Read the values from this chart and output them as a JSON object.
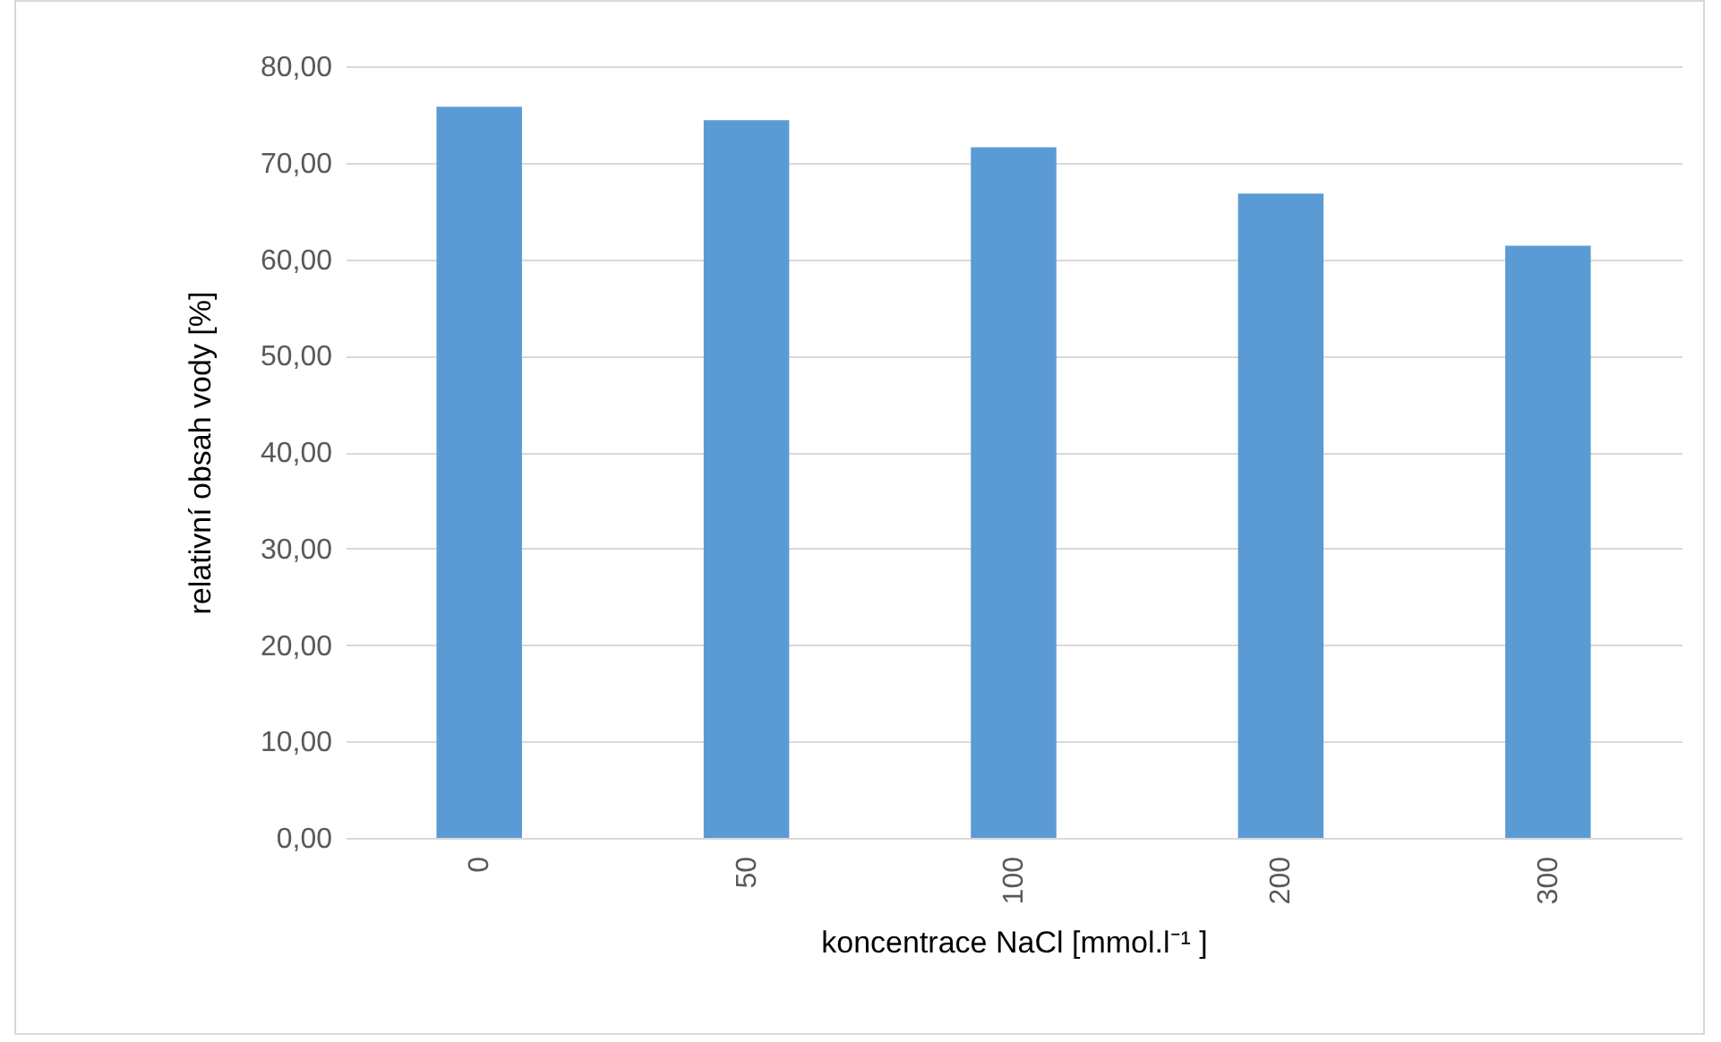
{
  "chart_data": {
    "type": "bar",
    "xlabel": "koncentrace NaCl [mmol.l⁻¹ ]",
    "ylabel": "relativní obsah vody [%]",
    "categories": [
      "0",
      "50",
      "100",
      "200",
      "300"
    ],
    "values": [
      75.8,
      74.4,
      71.6,
      66.8,
      61.4
    ],
    "color": "#5b9bd5",
    "ylim": [
      0,
      80
    ],
    "yticks": [
      {
        "value": 0,
        "label": "0,00"
      },
      {
        "value": 10,
        "label": "10,00"
      },
      {
        "value": 20,
        "label": "20,00"
      },
      {
        "value": 30,
        "label": "30,00"
      },
      {
        "value": 40,
        "label": "40,00"
      },
      {
        "value": 50,
        "label": "50,00"
      },
      {
        "value": 60,
        "label": "60,00"
      },
      {
        "value": 70,
        "label": "70,00"
      },
      {
        "value": 80,
        "label": "80,00"
      }
    ],
    "grid": "y"
  }
}
